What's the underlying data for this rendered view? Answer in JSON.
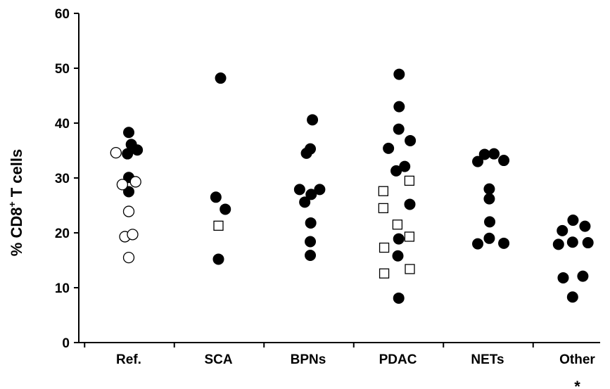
{
  "chart_data": {
    "type": "scatter",
    "title": "",
    "ylabel": {
      "prefix": "% CD8",
      "superscript": "+",
      "suffix": " T cells"
    },
    "ylim": [
      0,
      60
    ],
    "yticks": [
      0,
      10,
      20,
      30,
      40,
      50,
      60
    ],
    "categories": [
      "Ref.",
      "SCA",
      "BPNs",
      "PDAC",
      "NETs",
      "Other"
    ],
    "grid": false,
    "legend": "none",
    "annotations": [
      {
        "category": "Other",
        "text": "*"
      }
    ],
    "series": [
      {
        "marker": "filled-circle",
        "color": "#000000",
        "points": [
          {
            "category": "Ref.",
            "offset": 0.0,
            "y": 38.3
          },
          {
            "category": "Ref.",
            "offset": 0.06,
            "y": 36.1
          },
          {
            "category": "Ref.",
            "offset": -0.03,
            "y": 34.4
          },
          {
            "category": "Ref.",
            "offset": 0.2,
            "y": 35.1
          },
          {
            "category": "Ref.",
            "offset": 0.0,
            "y": 30.1
          },
          {
            "category": "Ref.",
            "offset": 0.0,
            "y": 27.5
          },
          {
            "category": "SCA",
            "offset": 0.05,
            "y": 48.2
          },
          {
            "category": "SCA",
            "offset": -0.06,
            "y": 26.5
          },
          {
            "category": "SCA",
            "offset": 0.16,
            "y": 24.3
          },
          {
            "category": "SCA",
            "offset": 0.0,
            "y": 15.2
          },
          {
            "category": "BPNs",
            "offset": 0.1,
            "y": 40.6
          },
          {
            "category": "BPNs",
            "offset": 0.05,
            "y": 35.3
          },
          {
            "category": "BPNs",
            "offset": -0.04,
            "y": 34.5
          },
          {
            "category": "BPNs",
            "offset": -0.2,
            "y": 27.9
          },
          {
            "category": "BPNs",
            "offset": 0.27,
            "y": 27.9
          },
          {
            "category": "BPNs",
            "offset": 0.07,
            "y": 27.0
          },
          {
            "category": "BPNs",
            "offset": -0.08,
            "y": 25.6
          },
          {
            "category": "BPNs",
            "offset": 0.06,
            "y": 21.8
          },
          {
            "category": "BPNs",
            "offset": 0.05,
            "y": 18.4
          },
          {
            "category": "BPNs",
            "offset": 0.05,
            "y": 15.9
          },
          {
            "category": "PDAC",
            "offset": 0.03,
            "y": 48.9
          },
          {
            "category": "PDAC",
            "offset": 0.03,
            "y": 43.0
          },
          {
            "category": "PDAC",
            "offset": 0.02,
            "y": 38.9
          },
          {
            "category": "PDAC",
            "offset": 0.29,
            "y": 36.8
          },
          {
            "category": "PDAC",
            "offset": -0.22,
            "y": 35.4
          },
          {
            "category": "PDAC",
            "offset": 0.16,
            "y": 32.1
          },
          {
            "category": "PDAC",
            "offset": -0.04,
            "y": 31.3
          },
          {
            "category": "PDAC",
            "offset": 0.28,
            "y": 25.2
          },
          {
            "category": "PDAC",
            "offset": 0.02,
            "y": 18.9
          },
          {
            "category": "PDAC",
            "offset": 0.0,
            "y": 15.8
          },
          {
            "category": "PDAC",
            "offset": 0.02,
            "y": 8.1
          },
          {
            "category": "NETs",
            "offset": -0.23,
            "y": 33.0
          },
          {
            "category": "NETs",
            "offset": -0.07,
            "y": 34.3
          },
          {
            "category": "NETs",
            "offset": 0.15,
            "y": 34.4
          },
          {
            "category": "NETs",
            "offset": 0.38,
            "y": 33.2
          },
          {
            "category": "NETs",
            "offset": 0.04,
            "y": 28.0
          },
          {
            "category": "NETs",
            "offset": 0.04,
            "y": 26.2
          },
          {
            "category": "NETs",
            "offset": 0.05,
            "y": 22.0
          },
          {
            "category": "NETs",
            "offset": -0.23,
            "y": 18.0
          },
          {
            "category": "NETs",
            "offset": 0.04,
            "y": 19.0
          },
          {
            "category": "NETs",
            "offset": 0.38,
            "y": 18.1
          },
          {
            "category": "Other",
            "offset": -0.1,
            "y": 22.3
          },
          {
            "category": "Other",
            "offset": -0.35,
            "y": 20.4
          },
          {
            "category": "Other",
            "offset": 0.18,
            "y": 21.2
          },
          {
            "category": "Other",
            "offset": -0.44,
            "y": 17.9
          },
          {
            "category": "Other",
            "offset": -0.11,
            "y": 18.3
          },
          {
            "category": "Other",
            "offset": 0.25,
            "y": 18.2
          },
          {
            "category": "Other",
            "offset": -0.33,
            "y": 11.8
          },
          {
            "category": "Other",
            "offset": 0.13,
            "y": 12.1
          },
          {
            "category": "Other",
            "offset": -0.11,
            "y": 8.3
          }
        ]
      },
      {
        "marker": "open-circle",
        "color": "#000000",
        "points": [
          {
            "category": "Ref.",
            "offset": -0.3,
            "y": 34.6
          },
          {
            "category": "Ref.",
            "offset": -0.15,
            "y": 28.8
          },
          {
            "category": "Ref.",
            "offset": 0.16,
            "y": 29.3
          },
          {
            "category": "Ref.",
            "offset": 0.0,
            "y": 23.9
          },
          {
            "category": "Ref.",
            "offset": -0.09,
            "y": 19.3
          },
          {
            "category": "Ref.",
            "offset": 0.09,
            "y": 19.7
          },
          {
            "category": "Ref.",
            "offset": 0.0,
            "y": 15.5
          }
        ]
      },
      {
        "marker": "open-square",
        "color": "#000000",
        "points": [
          {
            "category": "SCA",
            "offset": 0.0,
            "y": 21.3
          },
          {
            "category": "PDAC",
            "offset": -0.34,
            "y": 27.6
          },
          {
            "category": "PDAC",
            "offset": 0.27,
            "y": 29.5
          },
          {
            "category": "PDAC",
            "offset": -0.34,
            "y": 24.5
          },
          {
            "category": "PDAC",
            "offset": -0.01,
            "y": 21.5
          },
          {
            "category": "PDAC",
            "offset": 0.27,
            "y": 19.3
          },
          {
            "category": "PDAC",
            "offset": -0.32,
            "y": 17.3
          },
          {
            "category": "PDAC",
            "offset": -0.32,
            "y": 12.6
          },
          {
            "category": "PDAC",
            "offset": 0.28,
            "y": 13.4
          }
        ]
      }
    ]
  }
}
